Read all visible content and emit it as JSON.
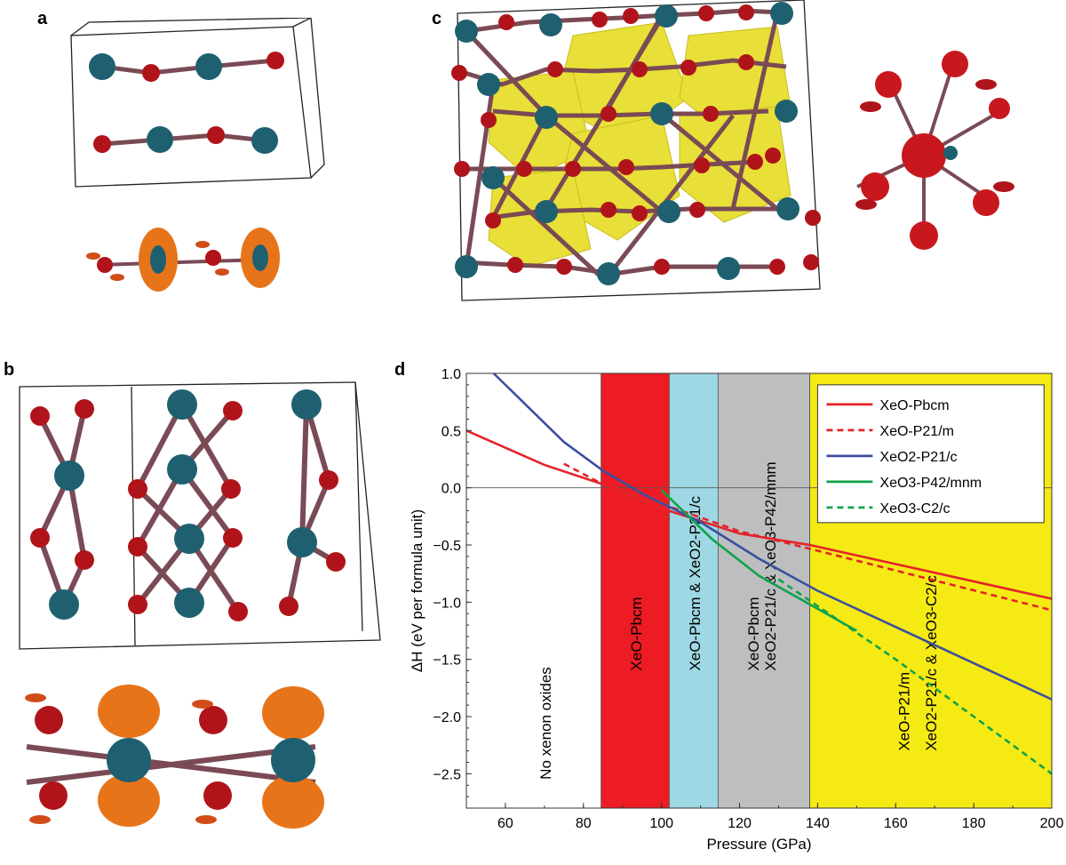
{
  "panels": {
    "a": "a",
    "b": "b",
    "c": "c",
    "d": "d"
  },
  "colors": {
    "xenon": "#1f6070",
    "oxygen": "#b0141a",
    "bond": "#7a4a55",
    "elf_orange": "#e8741a",
    "polyhedra": "#e8df38",
    "region_xeo": "#ed1c24",
    "region_xeo_xeo2": "#9ed8e4",
    "region_grey": "#bcbec0",
    "region_yellow": "#f5ea14"
  },
  "chart_data": {
    "type": "line",
    "xlabel": "Pressure (GPa)",
    "ylabel": "ΔH (eV per formula unit)",
    "xlim": [
      50,
      200
    ],
    "ylim": [
      -2.8,
      1.0
    ],
    "xticks": [
      "60",
      "80",
      "100",
      "120",
      "140",
      "160",
      "180",
      "200"
    ],
    "yticks": [
      "1.0",
      "0.5",
      "0.0",
      "−0.5",
      "−1.0",
      "−1.5",
      "−2.0",
      "−2.5"
    ],
    "regions": [
      {
        "x0": 84.5,
        "x1": 102,
        "color": "#ed1c24",
        "label": "XeO-Pbcm"
      },
      {
        "x0": 102,
        "x1": 114.5,
        "color": "#9ed8e4",
        "label": "XeO-Pbcm & XeO2-P21/c"
      },
      {
        "x0": 114.5,
        "x1": 138,
        "color": "#bcbec0",
        "label": "XeO-Pbcm / XeO2-P21/c & XeO3-P42/mnm"
      },
      {
        "x0": 138,
        "x1": 200,
        "color": "#f5ea14",
        "label": "XeO-P21/m / XeO2-P21/c & XeO3-C2/c"
      }
    ],
    "region_text": {
      "none": "No xenon oxides",
      "r1": "XeO-Pbcm",
      "r2": "XeO-Pbcm & XeO2-P21/c",
      "r3a": "XeO-Pbcm",
      "r3b": "XeO2-P21/c & XeO3-P42/mnm",
      "r4a": "XeO-P21/m",
      "r4b": "XeO2-P21/c & XeO3-C2/c"
    },
    "series": [
      {
        "name": "XeO-Pbcm",
        "color": "#e4232a",
        "dash": false,
        "points": [
          [
            50,
            0.5
          ],
          [
            70,
            0.2
          ],
          [
            85,
            0.03
          ],
          [
            100,
            -0.18
          ],
          [
            120,
            -0.4
          ],
          [
            138,
            -0.5
          ],
          [
            200,
            -0.97
          ]
        ]
      },
      {
        "name": "XeO-P21/m",
        "color": "#e4232a",
        "dash": true,
        "points": [
          [
            75,
            0.21
          ],
          [
            85,
            0.03
          ],
          [
            100,
            -0.14
          ],
          [
            120,
            -0.38
          ],
          [
            140,
            -0.55
          ],
          [
            200,
            -1.07
          ]
        ]
      },
      {
        "name": "XeO2-P21/c",
        "color": "#3b4fa0",
        "dash": false,
        "points": [
          [
            57,
            1.0
          ],
          [
            75,
            0.4
          ],
          [
            85,
            0.15
          ],
          [
            95,
            -0.05
          ],
          [
            110,
            -0.3
          ],
          [
            125,
            -0.62
          ],
          [
            140,
            -0.9
          ],
          [
            200,
            -1.85
          ]
        ]
      },
      {
        "name": "XeO3-P42/mnm",
        "color": "#11a24a",
        "dash": false,
        "points": [
          [
            100,
            -0.02
          ],
          [
            113,
            -0.45
          ],
          [
            125,
            -0.77
          ],
          [
            150,
            -1.25
          ]
        ]
      },
      {
        "name": "XeO3-C2/c",
        "color": "#11a24a",
        "dash": true,
        "points": [
          [
            130,
            -0.8
          ],
          [
            160,
            -1.5
          ],
          [
            200,
            -2.5
          ]
        ]
      }
    ],
    "legend": {
      "placement": "top-right",
      "items": [
        {
          "label": "XeO-Pbcm",
          "color": "#e4232a",
          "dash": false
        },
        {
          "label": "XeO-P21/m",
          "color": "#e4232a",
          "dash": true
        },
        {
          "label": "XeO2-P21/c",
          "color": "#3b4fa0",
          "dash": false
        },
        {
          "label": "XeO3-P42/mnm",
          "color": "#11a24a",
          "dash": false
        },
        {
          "label": "XeO3-C2/c",
          "color": "#11a24a",
          "dash": true
        }
      ]
    }
  }
}
